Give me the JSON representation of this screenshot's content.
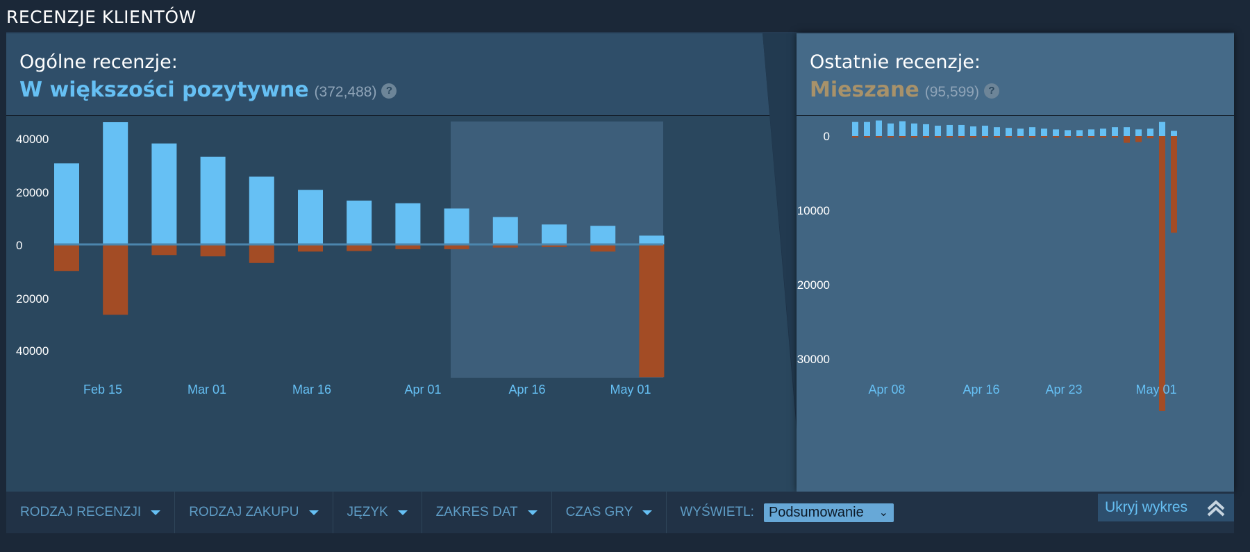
{
  "section_title": "RECENZJE KLIENTÓW",
  "overall": {
    "label": "Ogólne recenzje:",
    "score": "W większości pozytywne",
    "count": "(372,488)",
    "help": "?"
  },
  "recent": {
    "label": "Ostatnie recenzje:",
    "score": "Mieszane",
    "count": "(95,599)",
    "help": "?"
  },
  "colors": {
    "positive": "#66c0f4",
    "negative": "#a34c25",
    "score_positive": "#66c0f4",
    "score_mixed": "#a8926a"
  },
  "chart_data": [
    {
      "type": "bar",
      "title": "",
      "x_tick_labels": [
        "Feb 15",
        "Mar 01",
        "Mar 16",
        "Apr 01",
        "Apr 16",
        "May 01"
      ],
      "y_tick_labels": [
        "40000",
        "20000",
        "0",
        "20000",
        "40000"
      ],
      "ylim": [
        -50000,
        46000
      ],
      "series": [
        {
          "name": "",
          "color": "positive",
          "values": [
            30500,
            46000,
            38000,
            33000,
            25500,
            20500,
            16500,
            15500,
            13500,
            10300,
            7500,
            7000,
            3300
          ]
        },
        {
          "name": "",
          "color": "negative",
          "values": [
            -10000,
            -26500,
            -4000,
            -4500,
            -7000,
            -2700,
            -2500,
            -1800,
            -1800,
            -1200,
            -1000,
            -2700,
            -50000
          ]
        }
      ],
      "highlight_range": "last 30 days"
    },
    {
      "type": "bar",
      "title": "",
      "x_tick_labels": [
        "Apr 08",
        "Apr 16",
        "Apr 23",
        "May 01"
      ],
      "y_tick_labels": [
        "0",
        "10000",
        "20000",
        "30000"
      ],
      "ylim": [
        -37000,
        2500
      ],
      "series": [
        {
          "name": "",
          "color": "positive",
          "values": [
            1900,
            1900,
            2100,
            1700,
            2000,
            1700,
            1600,
            1400,
            1500,
            1500,
            1300,
            1400,
            1200,
            1100,
            1000,
            1200,
            1000,
            900,
            800,
            800,
            900,
            1000,
            1200,
            1200,
            900,
            1000,
            1900,
            700
          ]
        },
        {
          "name": "",
          "color": "negative",
          "values": [
            -200,
            -200,
            -200,
            -200,
            -200,
            -200,
            -200,
            -200,
            -200,
            -200,
            -200,
            -200,
            -200,
            -200,
            -200,
            -200,
            -200,
            -200,
            -200,
            -200,
            -200,
            -200,
            -200,
            -900,
            -800,
            -300,
            -37000,
            -13000
          ]
        }
      ]
    }
  ],
  "filters": [
    {
      "name": "filter-review-type",
      "label": "RODZAJ RECENZJI"
    },
    {
      "name": "filter-purchase-type",
      "label": "RODZAJ ZAKUPU"
    },
    {
      "name": "filter-language",
      "label": "JĘZYK"
    },
    {
      "name": "filter-date-range",
      "label": "ZAKRES DAT"
    },
    {
      "name": "filter-playtime",
      "label": "CZAS GRY"
    }
  ],
  "display": {
    "label": "WYŚWIETL:",
    "selected": "Podsumowanie"
  },
  "hide_chart": {
    "label": "Ukryj wykres",
    "icon": "double-chevron-up-icon"
  }
}
